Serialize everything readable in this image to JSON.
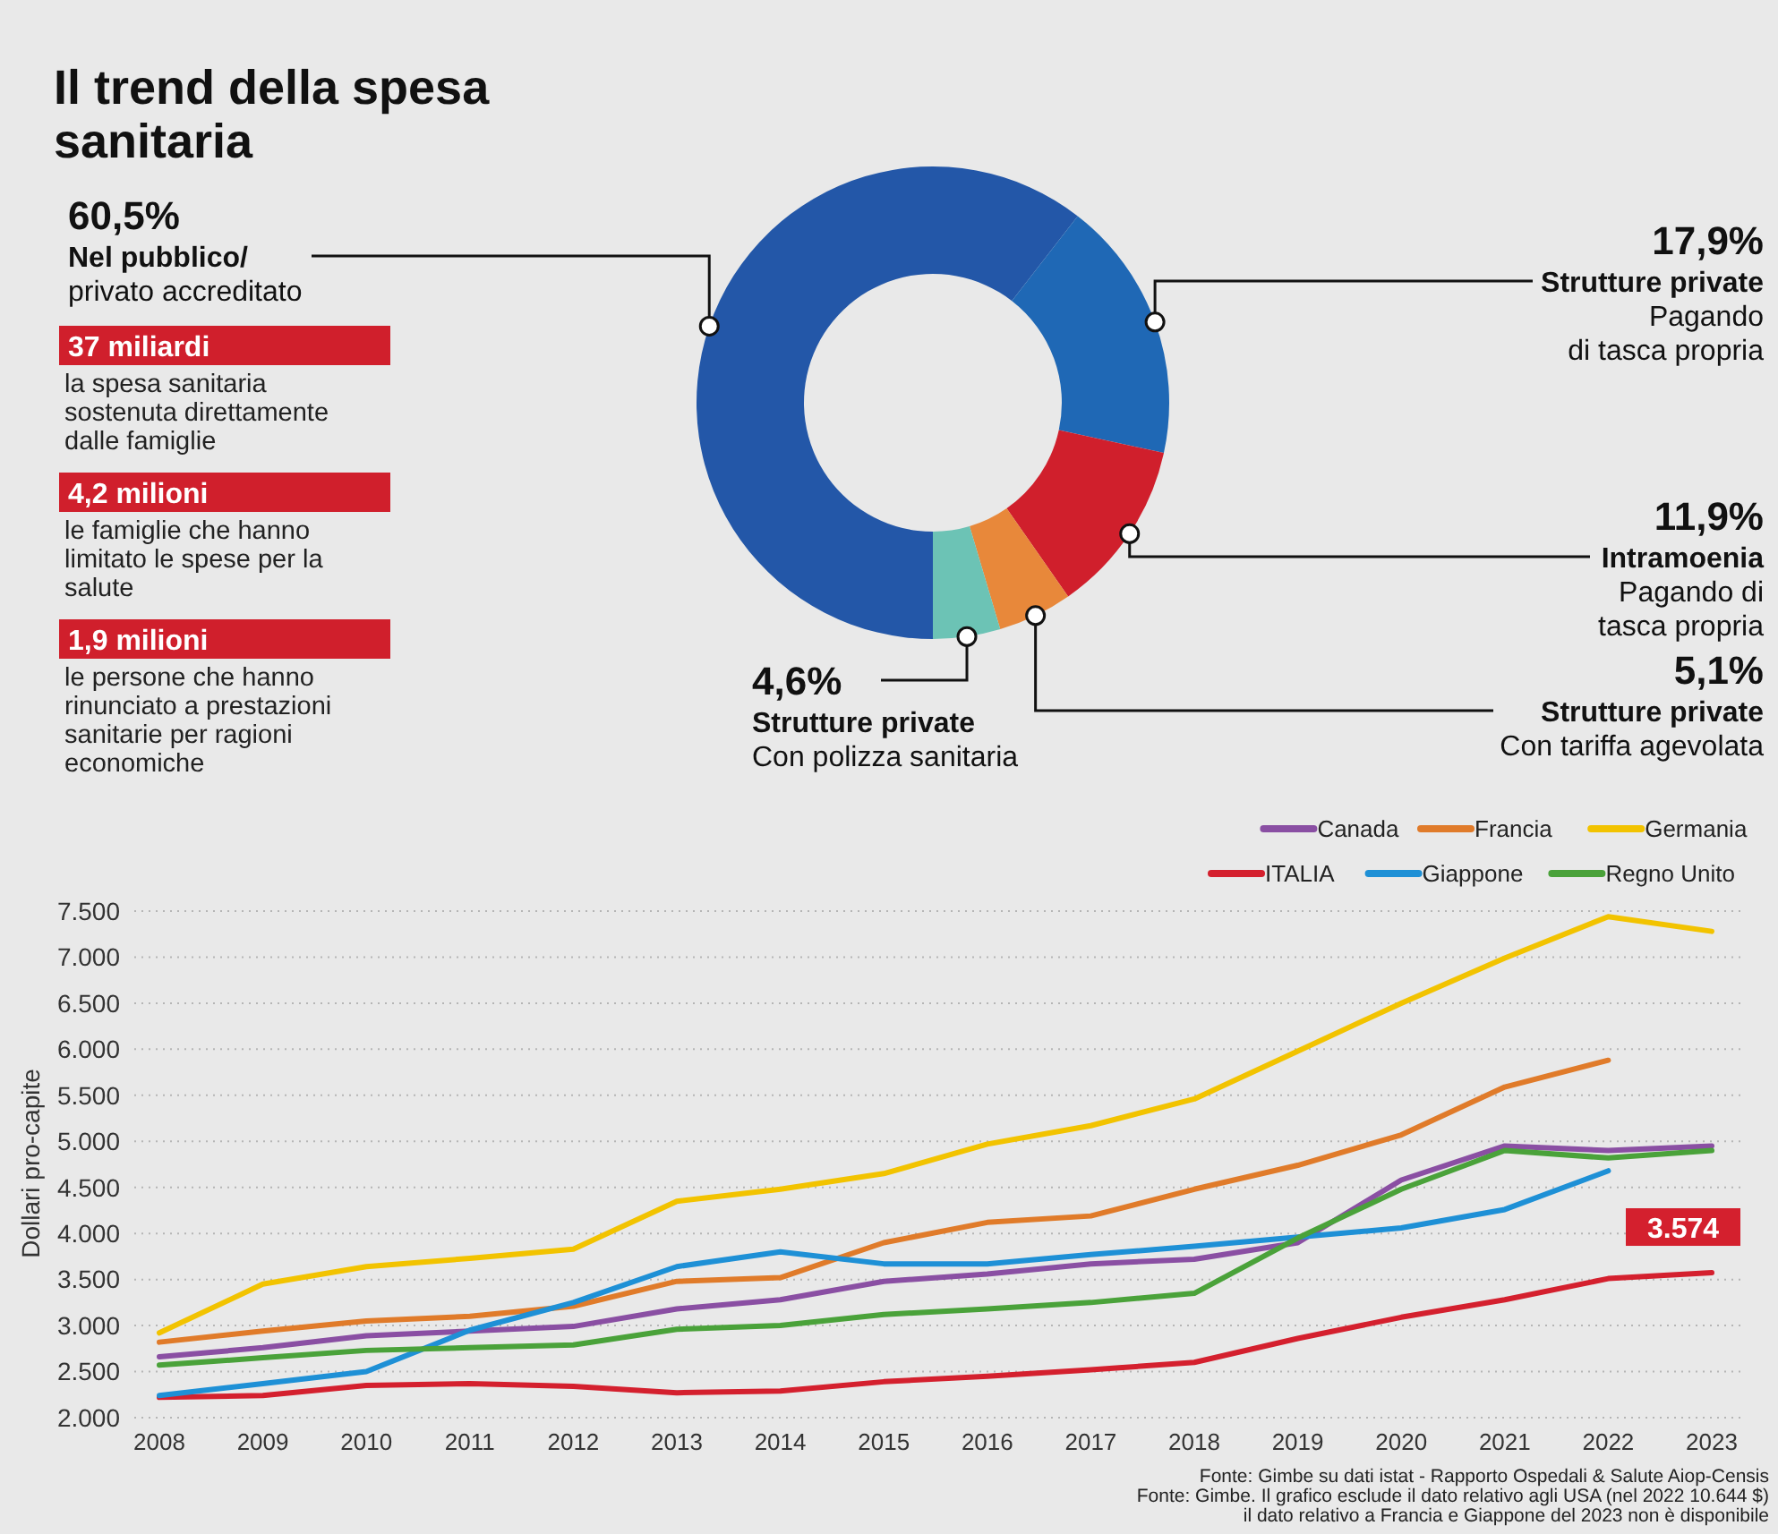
{
  "chart_data": [
    {
      "type": "other",
      "title": "Il trend della spesa sanitaria",
      "annotations": [
        "37 miliardi",
        "la spesa sanitaria sostenuta direttamente dalle famiglie",
        "4,2 milioni",
        "le famiglie che hanno limitato le spese per la salute",
        "1,9 milioni",
        "le persone che hanno rinunciato a prestazioni sanitarie per ragioni economiche"
      ]
    },
    {
      "type": "donut",
      "categories": [
        "Nel pubblico/\nprivato accreditato",
        "Strutture private\nPagando\ndi tasca propria",
        "Intramoenia\nPagando di\ntasca propria",
        "Strutture private\nCon tariffa agevolata",
        "Strutture private\nCon polizza sanitaria"
      ],
      "values": [
        60.5,
        17.9,
        11.9,
        5.1,
        4.6
      ],
      "value_labels": [
        "60,5%",
        "17,9%",
        "11,9%",
        "5,1%",
        "4,6%"
      ],
      "colors": [
        "#2357a8",
        "#1f68b5",
        "#d01f2c",
        "#e8883a",
        "#6cc3b5"
      ]
    },
    {
      "type": "line",
      "ylabel": "Dollari pro-capite",
      "categories": [
        "2008",
        "2009",
        "2010",
        "2011",
        "2012",
        "2013",
        "2014",
        "2015",
        "2016",
        "2017",
        "2018",
        "2019",
        "2020",
        "2021",
        "2022",
        "2023"
      ],
      "ylim": [
        2000,
        7500
      ],
      "yticks": [
        {
          "value": 2000,
          "label": "2.000"
        },
        {
          "value": 2500,
          "label": "2.500"
        },
        {
          "value": 3000,
          "label": "3.000"
        },
        {
          "value": 3500,
          "label": "3.500"
        },
        {
          "value": 4000,
          "label": "4.000"
        },
        {
          "value": 4500,
          "label": "4.500"
        },
        {
          "value": 5000,
          "label": "5.000"
        },
        {
          "value": 5500,
          "label": "5.500"
        },
        {
          "value": 6000,
          "label": "6.000"
        },
        {
          "value": 6500,
          "label": "6.500"
        },
        {
          "value": 7000,
          "label": "7.000"
        },
        {
          "value": 7500,
          "label": "7.500"
        }
      ],
      "grid": "y",
      "legend": "top right",
      "series": [
        {
          "name": "Canada",
          "color": "#8a4fa3",
          "values": [
            2660,
            2760,
            2890,
            2940,
            2990,
            3180,
            3280,
            3480,
            3560,
            3670,
            3720,
            3900,
            4580,
            4950,
            4900,
            4950
          ]
        },
        {
          "name": "Francia",
          "color": "#e07b2a",
          "values": [
            2820,
            2940,
            3050,
            3100,
            3210,
            3480,
            3520,
            3900,
            4120,
            4190,
            4480,
            4740,
            5070,
            5590,
            5880,
            null
          ]
        },
        {
          "name": "Germania",
          "color": "#f2c300",
          "values": [
            2920,
            3450,
            3640,
            3730,
            3830,
            4350,
            4480,
            4650,
            4970,
            5170,
            5460,
            5980,
            6500,
            6990,
            7440,
            7280
          ]
        },
        {
          "name": "ITALIA",
          "color": "#d4202e",
          "values": [
            2220,
            2240,
            2350,
            2370,
            2340,
            2270,
            2290,
            2390,
            2450,
            2520,
            2600,
            2860,
            3090,
            3280,
            3510,
            3574
          ],
          "value_labels": [
            null,
            null,
            null,
            null,
            null,
            null,
            null,
            null,
            null,
            null,
            null,
            null,
            null,
            null,
            null,
            "3.574"
          ]
        },
        {
          "name": "Giappone",
          "color": "#1e90d6",
          "values": [
            2240,
            2370,
            2500,
            2950,
            3250,
            3640,
            3800,
            3670,
            3670,
            3770,
            3860,
            3960,
            4060,
            4260,
            4680,
            null
          ]
        },
        {
          "name": "Regno Unito",
          "color": "#4aa23a",
          "values": [
            2570,
            2650,
            2730,
            2760,
            2790,
            2960,
            3000,
            3120,
            3180,
            3250,
            3350,
            3950,
            4480,
            4900,
            4820,
            4900
          ]
        }
      ],
      "annotations": [
        "Fonte: Gimbe su dati istat - Rapporto Ospedali & Salute Aiop-Censis",
        "Fonte: Gimbe. Il grafico esclude il dato relativo agli USA (nel 2022 10.644 $)",
        "il dato relativo a Francia e Giappone del 2023 non è disponibile"
      ]
    }
  ]
}
